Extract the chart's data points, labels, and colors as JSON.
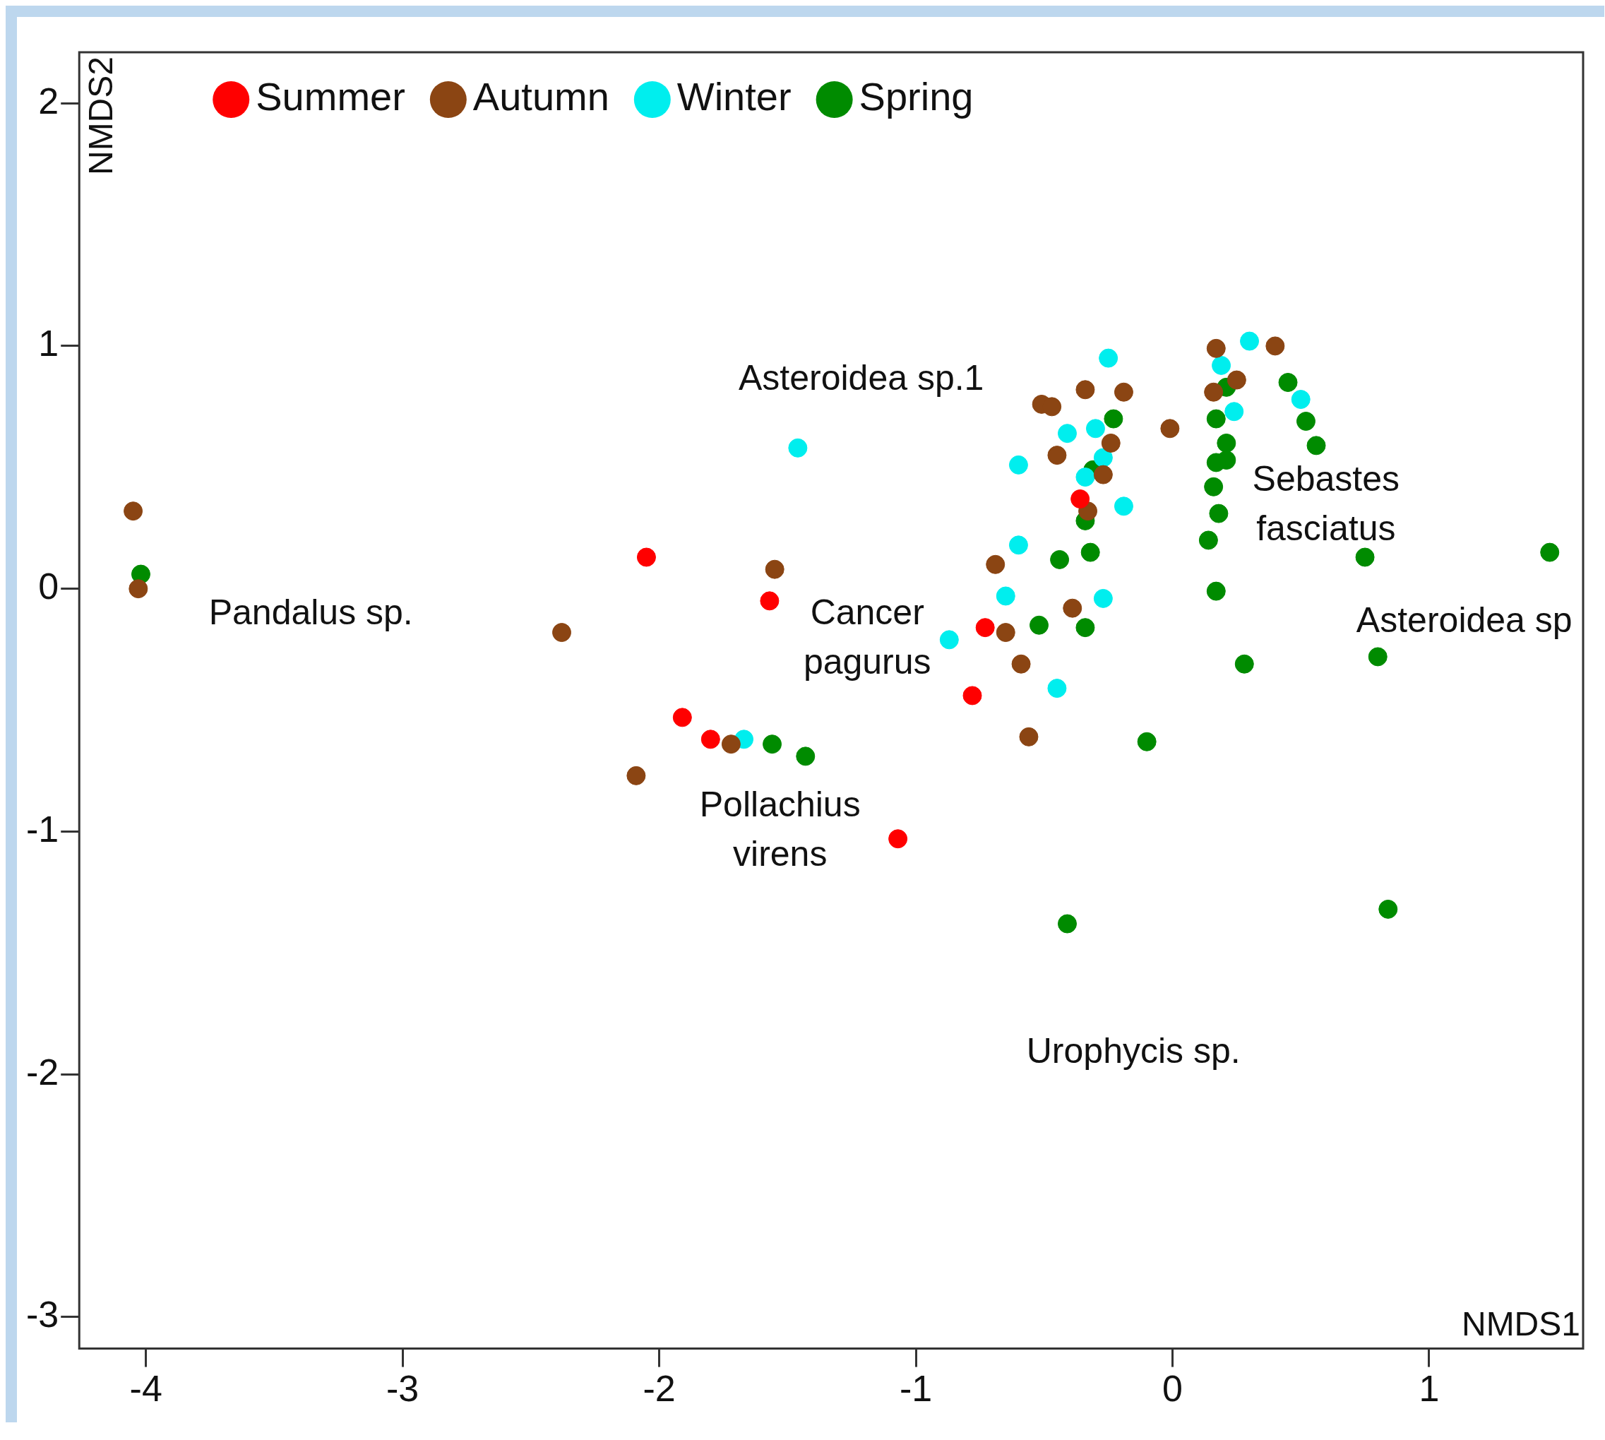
{
  "chart_data": {
    "type": "scatter",
    "xlabel": "NMDS1",
    "ylabel": "NMDS2",
    "xlim": [
      -4.26,
      1.6
    ],
    "ylim": [
      -3.13,
      2.21
    ],
    "xticks": [
      -4,
      -3,
      -2,
      -1,
      0,
      1
    ],
    "yticks": [
      -3,
      -2,
      -1,
      0,
      1,
      2
    ],
    "grid": false,
    "legend": "top left",
    "marker": "circle",
    "annotations": [
      "Asteroidea sp.1",
      "Pandalus sp.",
      "Cancer\npagurus",
      "Sebastes\nfasciatus",
      "Asteroidea sp",
      "Pollachius\nvirens",
      "Urophycis sp."
    ],
    "series": [
      {
        "name": "Summer",
        "color": "#ff0000",
        "x": [
          -2.05,
          -1.57,
          -1.91,
          -1.8,
          -1.07,
          -0.73,
          -0.78,
          -0.36
        ],
        "values": [
          0.13,
          -0.05,
          -0.53,
          -0.62,
          -1.03,
          -0.16,
          -0.44,
          0.37
        ]
      },
      {
        "name": "Autumn",
        "color": "#8b4513",
        "x": [
          -4.05,
          -4.03,
          -2.38,
          -2.09,
          -1.55,
          -1.72,
          -0.69,
          -0.65,
          -0.59,
          -0.56,
          -0.39,
          -0.51,
          -0.47,
          -0.34,
          -0.19,
          -0.45,
          -0.27,
          -0.24,
          -0.33,
          -0.01,
          0.17,
          0.4,
          0.16,
          0.25
        ],
        "values": [
          0.32,
          0.0,
          -0.18,
          -0.77,
          0.08,
          -0.64,
          0.1,
          -0.18,
          -0.31,
          -0.61,
          -0.08,
          0.76,
          0.75,
          0.82,
          0.81,
          0.55,
          0.47,
          0.6,
          0.32,
          0.66,
          0.99,
          1.0,
          0.81,
          0.86
        ]
      },
      {
        "name": "Winter",
        "color": "#00eeee",
        "x": [
          -1.46,
          -0.25,
          -0.6,
          -0.41,
          -0.3,
          -0.27,
          -0.34,
          -0.19,
          -0.6,
          -0.65,
          -0.27,
          -0.87,
          -0.45,
          -1.67,
          0.3,
          0.19,
          0.24,
          0.5
        ],
        "values": [
          0.58,
          0.95,
          0.51,
          0.64,
          0.66,
          0.54,
          0.46,
          0.34,
          0.18,
          -0.03,
          -0.04,
          -0.21,
          -0.41,
          -0.62,
          1.02,
          0.92,
          0.73,
          0.78
        ]
      },
      {
        "name": "Spring",
        "color": "#008b00",
        "x": [
          -4.02,
          -1.56,
          -1.43,
          -0.23,
          -0.31,
          -0.34,
          -0.32,
          -0.44,
          -0.52,
          -0.34,
          -0.1,
          -0.41,
          0.21,
          0.17,
          0.21,
          0.21,
          0.17,
          0.16,
          0.18,
          0.14,
          0.17,
          0.28,
          0.45,
          0.52,
          0.56,
          0.75,
          0.8,
          0.84,
          1.47
        ],
        "values": [
          0.06,
          -0.64,
          -0.69,
          0.7,
          0.49,
          0.28,
          0.15,
          0.12,
          -0.15,
          -0.16,
          -0.63,
          -1.38,
          0.83,
          0.7,
          0.6,
          0.53,
          0.52,
          0.42,
          0.31,
          0.2,
          -0.01,
          -0.31,
          0.85,
          0.69,
          0.59,
          0.13,
          -0.28,
          -1.32,
          0.15
        ]
      }
    ]
  }
}
